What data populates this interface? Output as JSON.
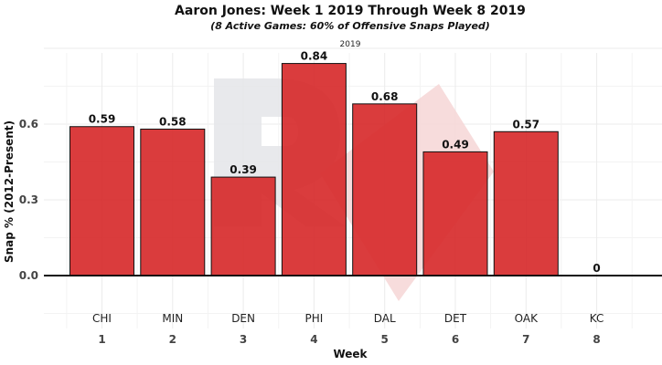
{
  "chart_data": {
    "type": "bar",
    "title": "Aaron Jones: Week 1 2019 Through Week 8 2019",
    "subtitle": "(8 Active Games: 60% of Offensive Snaps Played)",
    "facet_label": "2019",
    "xlabel": "Week",
    "ylabel": "Snap % (2012-Present)",
    "ylim": [
      -0.25,
      1.1
    ],
    "yticks": [
      "0.0",
      "0.3",
      "0.6"
    ],
    "ytick_values": [
      0.0,
      0.3,
      0.6
    ],
    "categories": [
      "1",
      "2",
      "3",
      "4",
      "5",
      "6",
      "7",
      "8"
    ],
    "opponents": [
      "CHI",
      "MIN",
      "DEN",
      "PHI",
      "DAL",
      "DET",
      "OAK",
      "KC"
    ],
    "values": [
      0.59,
      0.58,
      0.39,
      0.84,
      0.68,
      0.49,
      0.57,
      0
    ],
    "value_labels": [
      "0.59",
      "0.58",
      "0.39",
      "0.84",
      "0.68",
      "0.49",
      "0.57",
      "0"
    ],
    "bar_color": "#d62728",
    "bar_edge_color": "#111111",
    "grid": true,
    "legend": "none"
  },
  "watermark": {
    "name": "logo-watermark",
    "colors": [
      "#e6e7ea",
      "#f6d8d8"
    ]
  }
}
